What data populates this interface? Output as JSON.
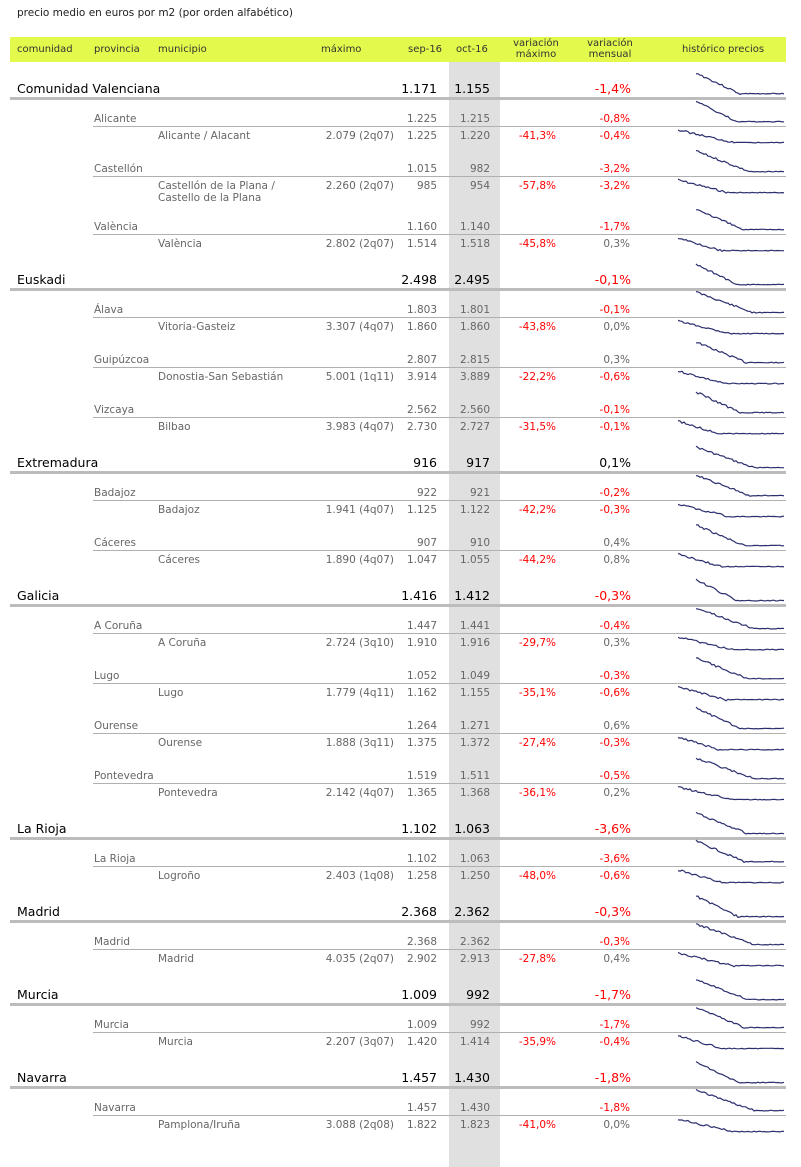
{
  "caption": "precio medio en euros por m2 (por orden alfabético)",
  "header": {
    "comunidad": "comunidad",
    "provincia": "provincia",
    "municipio": "municipio",
    "maximo": "máximo",
    "sep": "sep-16",
    "oct": "oct-16",
    "var_max_1": "variación",
    "var_max_2": "máximo",
    "var_mens_1": "variación",
    "var_mens_2": "mensual",
    "historico": "histórico precios"
  },
  "colors": {
    "header_bg": "#e3f94c",
    "negative": "#ff0000",
    "sparkline": "#2b2f6e",
    "highlight_column": "#e0e0e0"
  },
  "rows": [
    {
      "type": "region",
      "name": "Comunidad Valenciana",
      "maximo": "",
      "sep": "1.171",
      "oct": "1.155",
      "var_max": "",
      "var_mens": "-1,4%"
    },
    {
      "type": "prov",
      "name": "Alicante",
      "maximo": "",
      "sep": "1.225",
      "oct": "1.215",
      "var_max": "",
      "var_mens": "-0,8%"
    },
    {
      "type": "mun",
      "name": "Alicante / Alacant",
      "maximo": "2.079 (2q07)",
      "sep": "1.225",
      "oct": "1.220",
      "var_max": "-41,3%",
      "var_mens": "-0,4%"
    },
    {
      "type": "prov",
      "name": "Castellón",
      "maximo": "",
      "sep": "1.015",
      "oct": "982",
      "var_max": "",
      "var_mens": "-3,2%"
    },
    {
      "type": "mun",
      "name": "Castellón de la Plana /",
      "name2": "Castello de la Plana",
      "maximo": "2.260 (2q07)",
      "sep": "985",
      "oct": "954",
      "var_max": "-57,8%",
      "var_mens": "-3,2%"
    },
    {
      "type": "prov",
      "name": "València",
      "maximo": "",
      "sep": "1.160",
      "oct": "1.140",
      "var_max": "",
      "var_mens": "-1,7%"
    },
    {
      "type": "mun",
      "name": "València",
      "maximo": "2.802 (2q07)",
      "sep": "1.514",
      "oct": "1.518",
      "var_max": "-45,8%",
      "var_mens": "0,3%"
    },
    {
      "type": "region",
      "name": "Euskadi",
      "maximo": "",
      "sep": "2.498",
      "oct": "2.495",
      "var_max": "",
      "var_mens": "-0,1%"
    },
    {
      "type": "prov",
      "name": "Álava",
      "maximo": "",
      "sep": "1.803",
      "oct": "1.801",
      "var_max": "",
      "var_mens": "-0,1%"
    },
    {
      "type": "mun",
      "name": "Vitoria-Gasteiz",
      "maximo": "3.307 (4q07)",
      "sep": "1.860",
      "oct": "1.860",
      "var_max": "-43,8%",
      "var_mens": "0,0%"
    },
    {
      "type": "prov",
      "name": "Guipúzcoa",
      "maximo": "",
      "sep": "2.807",
      "oct": "2.815",
      "var_max": "",
      "var_mens": "0,3%"
    },
    {
      "type": "mun",
      "name": "Donostia-San Sebastián",
      "maximo": "5.001 (1q11)",
      "sep": "3.914",
      "oct": "3.889",
      "var_max": "-22,2%",
      "var_mens": "-0,6%"
    },
    {
      "type": "prov",
      "name": "Vizcaya",
      "maximo": "",
      "sep": "2.562",
      "oct": "2.560",
      "var_max": "",
      "var_mens": "-0,1%"
    },
    {
      "type": "mun",
      "name": "Bilbao",
      "maximo": "3.983 (4q07)",
      "sep": "2.730",
      "oct": "2.727",
      "var_max": "-31,5%",
      "var_mens": "-0,1%"
    },
    {
      "type": "region",
      "name": "Extremadura",
      "maximo": "",
      "sep": "916",
      "oct": "917",
      "var_max": "",
      "var_mens": "0,1%"
    },
    {
      "type": "prov",
      "name": "Badajoz",
      "maximo": "",
      "sep": "922",
      "oct": "921",
      "var_max": "",
      "var_mens": "-0,2%"
    },
    {
      "type": "mun",
      "name": "Badajoz",
      "maximo": "1.941 (4q07)",
      "sep": "1.125",
      "oct": "1.122",
      "var_max": "-42,2%",
      "var_mens": "-0,3%"
    },
    {
      "type": "prov",
      "name": "Cáceres",
      "maximo": "",
      "sep": "907",
      "oct": "910",
      "var_max": "",
      "var_mens": "0,4%"
    },
    {
      "type": "mun",
      "name": "Cáceres",
      "maximo": "1.890 (4q07)",
      "sep": "1.047",
      "oct": "1.055",
      "var_max": "-44,2%",
      "var_mens": "0,8%"
    },
    {
      "type": "region",
      "name": "Galicia",
      "maximo": "",
      "sep": "1.416",
      "oct": "1.412",
      "var_max": "",
      "var_mens": "-0,3%"
    },
    {
      "type": "prov",
      "name": "A Coruña",
      "maximo": "",
      "sep": "1.447",
      "oct": "1.441",
      "var_max": "",
      "var_mens": "-0,4%"
    },
    {
      "type": "mun",
      "name": "A Coruña",
      "maximo": "2.724 (3q10)",
      "sep": "1.910",
      "oct": "1.916",
      "var_max": "-29,7%",
      "var_mens": "0,3%"
    },
    {
      "type": "prov",
      "name": "Lugo",
      "maximo": "",
      "sep": "1.052",
      "oct": "1.049",
      "var_max": "",
      "var_mens": "-0,3%"
    },
    {
      "type": "mun",
      "name": "Lugo",
      "maximo": "1.779 (4q11)",
      "sep": "1.162",
      "oct": "1.155",
      "var_max": "-35,1%",
      "var_mens": "-0,6%"
    },
    {
      "type": "prov",
      "name": "Ourense",
      "maximo": "",
      "sep": "1.264",
      "oct": "1.271",
      "var_max": "",
      "var_mens": "0,6%"
    },
    {
      "type": "mun",
      "name": "Ourense",
      "maximo": "1.888 (3q11)",
      "sep": "1.375",
      "oct": "1.372",
      "var_max": "-27,4%",
      "var_mens": "-0,3%"
    },
    {
      "type": "prov",
      "name": "Pontevedra",
      "maximo": "",
      "sep": "1.519",
      "oct": "1.511",
      "var_max": "",
      "var_mens": "-0,5%"
    },
    {
      "type": "mun",
      "name": "Pontevedra",
      "maximo": "2.142 (4q07)",
      "sep": "1.365",
      "oct": "1.368",
      "var_max": "-36,1%",
      "var_mens": "0,2%"
    },
    {
      "type": "region",
      "name": "La Rioja",
      "maximo": "",
      "sep": "1.102",
      "oct": "1.063",
      "var_max": "",
      "var_mens": "-3,6%"
    },
    {
      "type": "prov",
      "name": "La Rioja",
      "maximo": "",
      "sep": "1.102",
      "oct": "1.063",
      "var_max": "",
      "var_mens": "-3,6%"
    },
    {
      "type": "mun",
      "name": "Logroño",
      "maximo": "2.403 (1q08)",
      "sep": "1.258",
      "oct": "1.250",
      "var_max": "-48,0%",
      "var_mens": "-0,6%"
    },
    {
      "type": "region",
      "name": "Madrid",
      "maximo": "",
      "sep": "2.368",
      "oct": "2.362",
      "var_max": "",
      "var_mens": "-0,3%"
    },
    {
      "type": "prov",
      "name": "Madrid",
      "maximo": "",
      "sep": "2.368",
      "oct": "2.362",
      "var_max": "",
      "var_mens": "-0,3%"
    },
    {
      "type": "mun",
      "name": "Madrid",
      "maximo": "4.035 (2q07)",
      "sep": "2.902",
      "oct": "2.913",
      "var_max": "-27,8%",
      "var_mens": "0,4%"
    },
    {
      "type": "region",
      "name": "Murcia",
      "maximo": "",
      "sep": "1.009",
      "oct": "992",
      "var_max": "",
      "var_mens": "-1,7%"
    },
    {
      "type": "prov",
      "name": "Murcia",
      "maximo": "",
      "sep": "1.009",
      "oct": "992",
      "var_max": "",
      "var_mens": "-1,7%"
    },
    {
      "type": "mun",
      "name": "Murcia",
      "maximo": "2.207 (3q07)",
      "sep": "1.420",
      "oct": "1.414",
      "var_max": "-35,9%",
      "var_mens": "-0,4%"
    },
    {
      "type": "region",
      "name": "Navarra",
      "maximo": "",
      "sep": "1.457",
      "oct": "1.430",
      "var_max": "",
      "var_mens": "-1,8%"
    },
    {
      "type": "prov",
      "name": "Navarra",
      "maximo": "",
      "sep": "1.457",
      "oct": "1.430",
      "var_max": "",
      "var_mens": "-1,8%"
    },
    {
      "type": "mun",
      "name": "Pamplona/Iruña",
      "maximo": "3.088 (2q08)",
      "sep": "1.822",
      "oct": "1.823",
      "var_max": "-41,0%",
      "var_mens": "0,0%"
    }
  ]
}
